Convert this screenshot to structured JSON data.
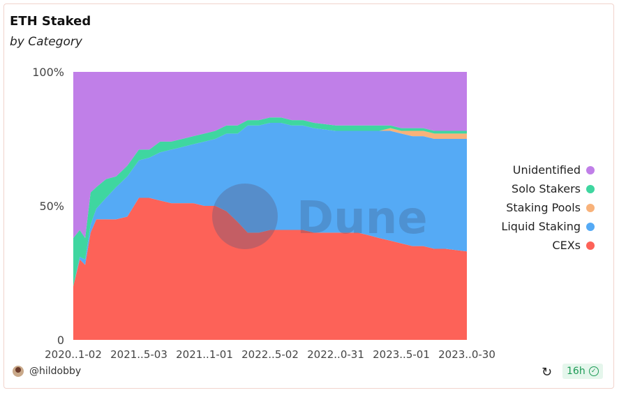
{
  "header": {
    "title": "ETH Staked",
    "subtitle": "by Category"
  },
  "footer": {
    "author": "@hildobby",
    "refresh_icon": "refresh-icon",
    "freshness": "16h"
  },
  "watermark": "Dune",
  "colors": {
    "unidentified": "#c07fe8",
    "solo": "#3fd6a0",
    "pools": "#f8b27a",
    "liquid": "#55aaf5",
    "cex": "#fd6258"
  },
  "chart_data": {
    "type": "area",
    "stacked_percent": true,
    "x": [
      "2020-11-02",
      "2020-11-20",
      "2020-12-05",
      "2020-12-20",
      "2021-01-05",
      "2021-02-01",
      "2021-03-01",
      "2021-04-01",
      "2021-05-03",
      "2021-06-01",
      "2021-07-01",
      "2021-08-01",
      "2021-09-01",
      "2021-10-01",
      "2021-11-01",
      "2021-12-01",
      "2022-01-01",
      "2022-02-01",
      "2022-03-01",
      "2022-04-01",
      "2022-05-02",
      "2022-06-01",
      "2022-07-01",
      "2022-08-01",
      "2022-09-01",
      "2022-10-31",
      "2022-12-01",
      "2023-01-01",
      "2023-02-01",
      "2023-03-01",
      "2023-04-01",
      "2023-05-01",
      "2023-06-01",
      "2023-07-01",
      "2023-08-01",
      "2023-09-01",
      "2023-10-30"
    ],
    "series": [
      {
        "name": "CEXs",
        "key": "cex",
        "values": [
          20,
          30,
          28,
          40,
          45,
          45,
          45,
          46,
          53,
          53,
          52,
          51,
          51,
          51,
          50,
          50,
          48,
          44,
          40,
          40,
          41,
          41,
          41,
          41,
          40,
          40,
          40,
          40,
          39,
          38,
          37,
          36,
          35,
          35,
          34,
          34,
          33
        ]
      },
      {
        "name": "Liquid Staking",
        "key": "liquid",
        "values": [
          0,
          1,
          2,
          3,
          4,
          8,
          12,
          15,
          14,
          15,
          18,
          20,
          21,
          22,
          24,
          25,
          29,
          33,
          40,
          40,
          40,
          40,
          39,
          39,
          39,
          38,
          38,
          38,
          39,
          40,
          41,
          41,
          41,
          41,
          41,
          41,
          42
        ]
      },
      {
        "name": "Staking Pools",
        "key": "pools",
        "values": [
          0,
          0,
          0,
          0,
          0,
          0,
          0,
          0,
          0,
          0,
          0,
          0,
          0,
          0,
          0,
          0,
          0,
          0,
          0,
          0,
          0,
          0,
          0,
          0,
          0,
          0,
          0,
          0,
          0,
          0,
          1,
          1,
          2,
          2,
          2,
          2,
          2
        ]
      },
      {
        "name": "Solo Stakers",
        "key": "solo",
        "values": [
          18,
          10,
          8,
          12,
          8,
          7,
          4,
          4,
          4,
          3,
          4,
          3,
          3,
          3,
          3,
          3,
          3,
          3,
          2,
          2,
          2,
          2,
          2,
          2,
          2,
          2,
          2,
          2,
          2,
          2,
          1,
          1,
          1,
          1,
          1,
          1,
          1
        ]
      },
      {
        "name": "Unidentified",
        "key": "unidentified",
        "values": [
          62,
          59,
          62,
          45,
          43,
          40,
          39,
          35,
          29,
          29,
          26,
          26,
          25,
          24,
          23,
          22,
          20,
          20,
          18,
          18,
          17,
          17,
          18,
          18,
          19,
          20,
          20,
          20,
          20,
          20,
          20,
          21,
          21,
          21,
          22,
          22,
          22
        ]
      }
    ],
    "legend_order": [
      "Unidentified",
      "Solo Stakers",
      "Staking Pools",
      "Liquid Staking",
      "CEXs"
    ],
    "legend_position": "right",
    "y_ticks": [
      "0",
      "50%",
      "100%"
    ],
    "x_tick_labels": [
      "2020..1-02",
      "2021..5-03",
      "2021..1-01",
      "2022..5-02",
      "2022..0-31",
      "2023..5-01",
      "2023..0-30"
    ],
    "ylim": [
      0,
      100
    ]
  }
}
